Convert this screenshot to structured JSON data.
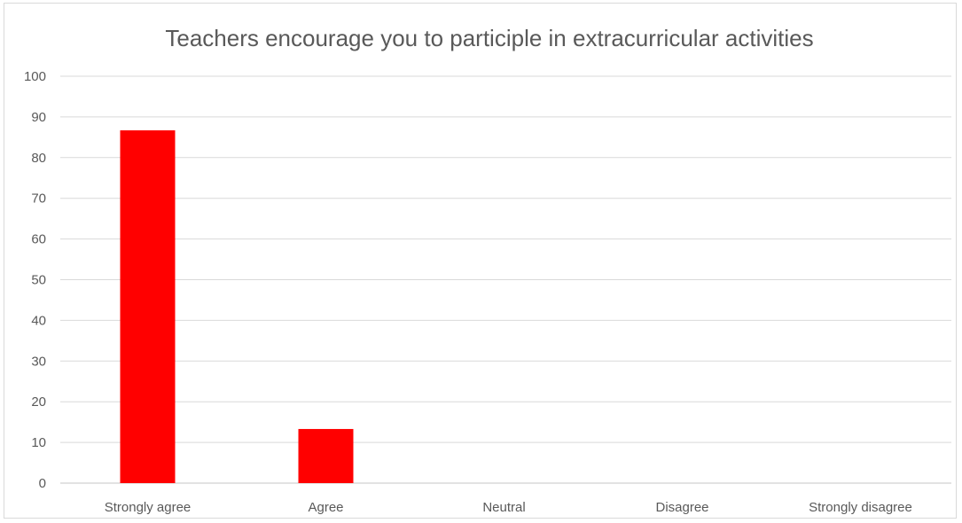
{
  "chart_data": {
    "type": "bar",
    "title": "Teachers encourage you to participle in extracurricular activities",
    "xlabel": "",
    "ylabel": "",
    "categories": [
      "Strongly agree",
      "Agree",
      "Neutral",
      "Disagree",
      "Strongly disagree"
    ],
    "values": [
      86.7,
      13.3,
      0,
      0,
      0
    ],
    "ylim": [
      0,
      100
    ],
    "yticks": [
      "0",
      "10",
      "20",
      "30",
      "40",
      "50",
      "60",
      "70",
      "80",
      "90",
      "100"
    ],
    "grid": true,
    "legend": "none",
    "bar_color": "#ff0000",
    "grid_color": "#d9d9d9",
    "text_color": "#595959"
  }
}
